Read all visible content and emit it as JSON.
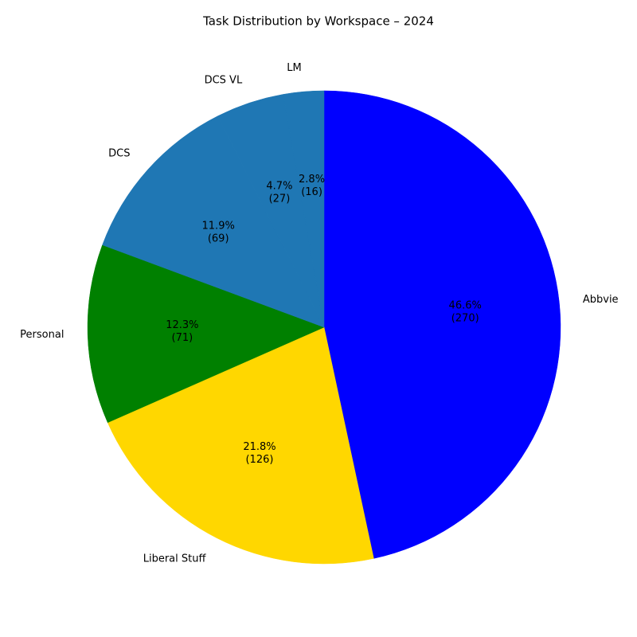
{
  "chart_data": {
    "type": "pie",
    "title": "Task Distribution by Workspace – 2024",
    "categories": [
      "Abbvie",
      "Liberal Stuff",
      "Personal",
      "DCS",
      "DCS VL",
      "LM"
    ],
    "values": [
      270,
      126,
      71,
      69,
      27,
      16
    ],
    "value_labels": [
      [
        "46.6%",
        "(270)"
      ],
      [
        "21.8%",
        "(126)"
      ],
      [
        "12.3%",
        "(71)"
      ],
      [
        "11.9%",
        "(69)"
      ],
      [
        "4.7%",
        "(27)"
      ],
      [
        "2.8%",
        "(16)"
      ]
    ],
    "colors": [
      "#0000ff",
      "#ffd700",
      "#008000",
      "#1f77b4",
      "#1f77b4",
      "#1f77b4"
    ]
  }
}
